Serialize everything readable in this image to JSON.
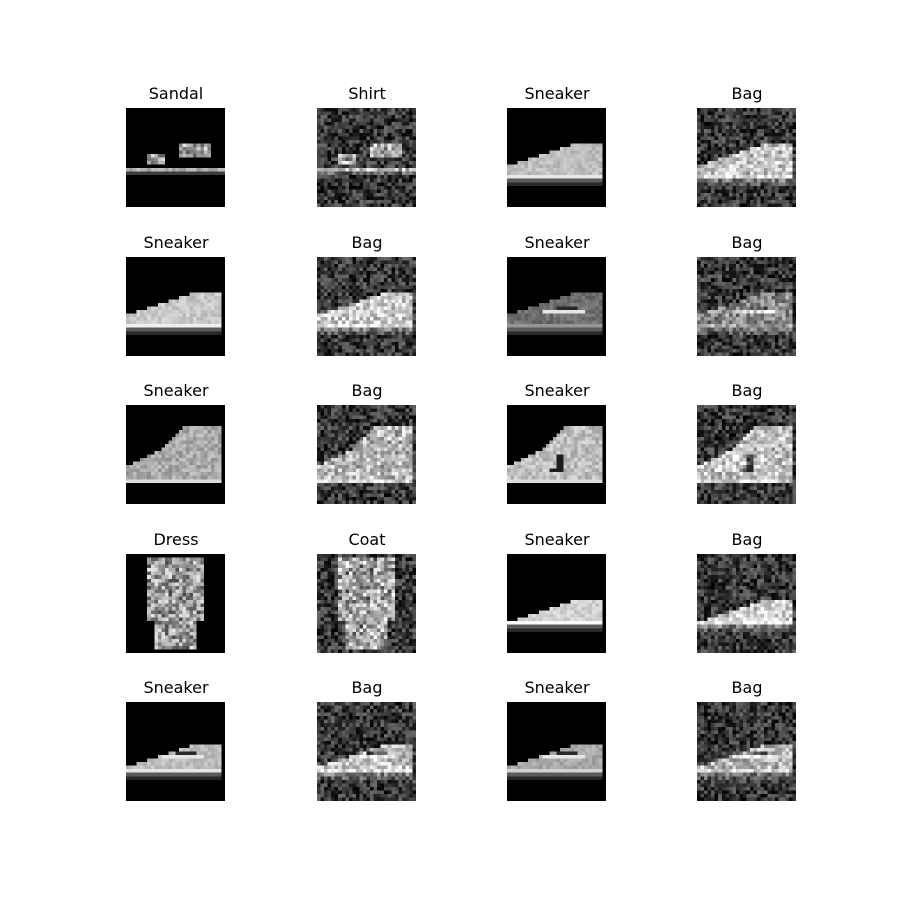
{
  "grid": {
    "rows": 5,
    "cols": 4,
    "cells": [
      {
        "label": "Sandal",
        "kind": "sandal",
        "noisy": false
      },
      {
        "label": "Shirt",
        "kind": "sandal",
        "noisy": true
      },
      {
        "label": "Sneaker",
        "kind": "sneaker1",
        "noisy": false
      },
      {
        "label": "Bag",
        "kind": "sneaker1",
        "noisy": true
      },
      {
        "label": "Sneaker",
        "kind": "sneaker2",
        "noisy": false
      },
      {
        "label": "Bag",
        "kind": "sneaker2",
        "noisy": true
      },
      {
        "label": "Sneaker",
        "kind": "sneaker3",
        "noisy": false
      },
      {
        "label": "Bag",
        "kind": "sneaker3",
        "noisy": true
      },
      {
        "label": "Sneaker",
        "kind": "boot1",
        "noisy": false
      },
      {
        "label": "Bag",
        "kind": "boot1",
        "noisy": true
      },
      {
        "label": "Sneaker",
        "kind": "boot2",
        "noisy": false
      },
      {
        "label": "Bag",
        "kind": "boot2",
        "noisy": true
      },
      {
        "label": "Dress",
        "kind": "dress",
        "noisy": false
      },
      {
        "label": "Coat",
        "kind": "dress",
        "noisy": true
      },
      {
        "label": "Sneaker",
        "kind": "sneaker4",
        "noisy": false
      },
      {
        "label": "Bag",
        "kind": "sneaker4",
        "noisy": true
      },
      {
        "label": "Sneaker",
        "kind": "sneaker5",
        "noisy": false
      },
      {
        "label": "Bag",
        "kind": "sneaker5",
        "noisy": true
      },
      {
        "label": "Sneaker",
        "kind": "sneaker6",
        "noisy": false
      },
      {
        "label": "Bag",
        "kind": "sneaker6",
        "noisy": true
      }
    ]
  }
}
